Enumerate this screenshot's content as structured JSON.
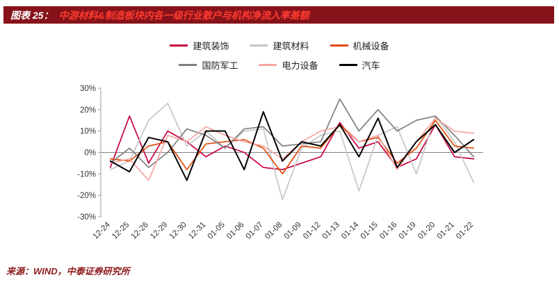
{
  "header": {
    "figure_number": "图表 25：",
    "figure_title": "中游材料&制造板块内各一级行业散户与机构净流入率差额"
  },
  "footer": {
    "source": "来源：WIND，中泰证券研究所"
  },
  "colors": {
    "banner_bg": "#87131A",
    "banner_number_text": "#FFFFFF",
    "banner_title_text": "#FF3B2F",
    "source_text": "#8E1A1C",
    "axis": "#9B9B9B",
    "zero_line": "#808080",
    "tick_label": "#333333"
  },
  "chart_data": {
    "type": "line",
    "title": "中游材料&制造板块内各一级行业散户与机构净流入率差额",
    "xlabel": "",
    "ylabel": "",
    "ylim": [
      -30,
      30
    ],
    "ytick_step": 10,
    "ytick_suffix": "%",
    "grid": false,
    "legend_position": "top",
    "categories": [
      "12-24",
      "12-25",
      "12-26",
      "12-29",
      "12-30",
      "12-31",
      "01-05",
      "01-06",
      "01-07",
      "01-08",
      "01-09",
      "01-12",
      "01-13",
      "01-14",
      "01-15",
      "01-16",
      "01-19",
      "01-20",
      "01-21",
      "01-22"
    ],
    "series": [
      {
        "name": "建筑装饰",
        "color": "#C8003C",
        "values": [
          -7,
          17,
          -5,
          10,
          5,
          -2,
          3,
          0,
          -7,
          -8,
          -5,
          -2,
          14,
          2,
          5,
          -7,
          -3,
          13,
          -2,
          -3
        ]
      },
      {
        "name": "建筑材料",
        "color": "#C6C6C6",
        "values": [
          -8,
          -4,
          15,
          23,
          3,
          10,
          2,
          10,
          11,
          -22,
          2,
          8,
          10,
          -18,
          8,
          12,
          -10,
          17,
          5,
          -14
        ]
      },
      {
        "name": "机械设备",
        "color": "#E04B0C",
        "values": [
          -3,
          -4,
          3,
          5,
          -8,
          4,
          5,
          6,
          2,
          -10,
          3,
          2,
          13,
          5,
          7,
          -5,
          2,
          15,
          3,
          2
        ]
      },
      {
        "name": "国防军工",
        "color": "#7F7F7F",
        "values": [
          -5,
          2,
          -7,
          0,
          11,
          8,
          2,
          11,
          12,
          3,
          4,
          5,
          25,
          10,
          20,
          10,
          15,
          17,
          8,
          -2
        ]
      },
      {
        "name": "电力设备",
        "color": "#F4A6A0",
        "values": [
          -5,
          -3,
          -13,
          8,
          5,
          12,
          8,
          5,
          3,
          -3,
          5,
          10,
          12,
          5,
          8,
          -8,
          5,
          16,
          10,
          9
        ]
      },
      {
        "name": "汽车",
        "color": "#000000",
        "values": [
          -4,
          -9,
          7,
          5,
          -13,
          10,
          10,
          -8,
          19,
          -4,
          5,
          3,
          13,
          -2,
          16,
          -7,
          5,
          13,
          0,
          6
        ]
      }
    ]
  }
}
